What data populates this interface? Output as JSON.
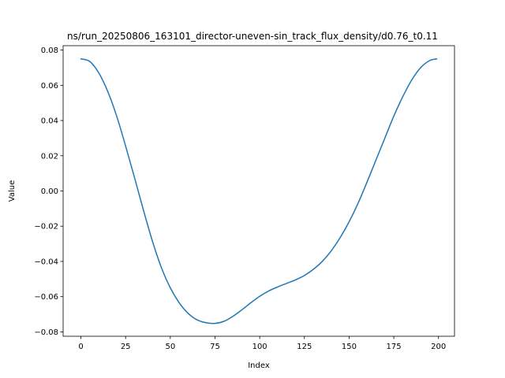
{
  "chart_data": {
    "type": "line",
    "title": "ns/run_20250806_163101_director-uneven-sin_track_flux_density/d0.76_t0.11",
    "xlabel": "Index",
    "ylabel": "Value",
    "xlim": [
      -9.95,
      208.95
    ],
    "ylim": [
      -0.0825,
      0.0825
    ],
    "xticks": [
      0,
      25,
      50,
      75,
      100,
      125,
      150,
      175,
      200
    ],
    "xtick_labels": [
      "0",
      "25",
      "50",
      "75",
      "100",
      "125",
      "150",
      "175",
      "200"
    ],
    "yticks": [
      -0.08,
      -0.06,
      -0.04,
      -0.02,
      0.0,
      0.02,
      0.04,
      0.06,
      0.08
    ],
    "ytick_labels": [
      "−0.08",
      "−0.06",
      "−0.04",
      "−0.02",
      "0.00",
      "0.02",
      "0.04",
      "0.06",
      "0.08"
    ],
    "grid": false,
    "legend": "none",
    "series": [
      {
        "color": "#1f77b4",
        "x": [
          0,
          5,
          10,
          15,
          20,
          25,
          30,
          35,
          40,
          45,
          50,
          55,
          60,
          65,
          70,
          75,
          80,
          85,
          90,
          95,
          100,
          105,
          110,
          115,
          120,
          125,
          130,
          135,
          140,
          145,
          150,
          155,
          160,
          165,
          170,
          175,
          180,
          185,
          190,
          195,
          199
        ],
        "values": [
          0.075,
          0.0735,
          0.067,
          0.0565,
          0.0425,
          0.0255,
          0.0075,
          -0.011,
          -0.0285,
          -0.0435,
          -0.055,
          -0.0635,
          -0.0695,
          -0.0732,
          -0.0748,
          -0.0752,
          -0.074,
          -0.0712,
          -0.0675,
          -0.0635,
          -0.0598,
          -0.0568,
          -0.0545,
          -0.0525,
          -0.0505,
          -0.048,
          -0.0445,
          -0.04,
          -0.034,
          -0.0265,
          -0.0175,
          -0.007,
          0.005,
          0.0175,
          0.03,
          0.0425,
          0.0535,
          0.063,
          0.07,
          0.074,
          0.075
        ]
      }
    ]
  }
}
